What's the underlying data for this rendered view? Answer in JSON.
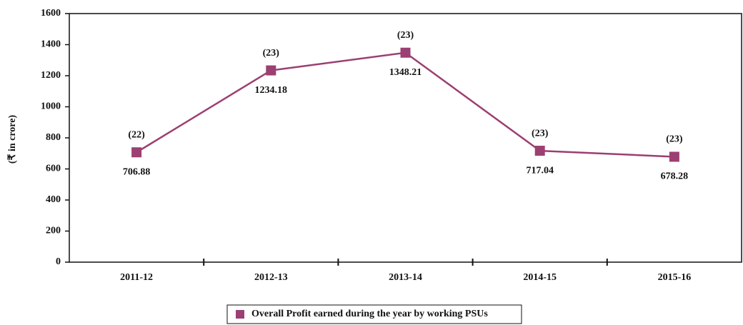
{
  "chart_data": {
    "type": "line",
    "y_axis_label": "(₹ in crore)",
    "categories": [
      "2011-12",
      "2012-13",
      "2013-14",
      "2014-15",
      "2015-16"
    ],
    "series": [
      {
        "name": "Overall Profit earned during the year by working PSUs",
        "color": "#9c3f72",
        "values": [
          706.88,
          1234.18,
          1348.21,
          717.04,
          678.28
        ]
      }
    ],
    "annotations": [
      "(22)",
      "(23)",
      "(23)",
      "(23)",
      "(23)"
    ],
    "ylim": [
      0,
      1600
    ],
    "yticks": [
      0,
      200,
      400,
      600,
      800,
      1000,
      1200,
      1400,
      1600
    ],
    "grid": false
  }
}
